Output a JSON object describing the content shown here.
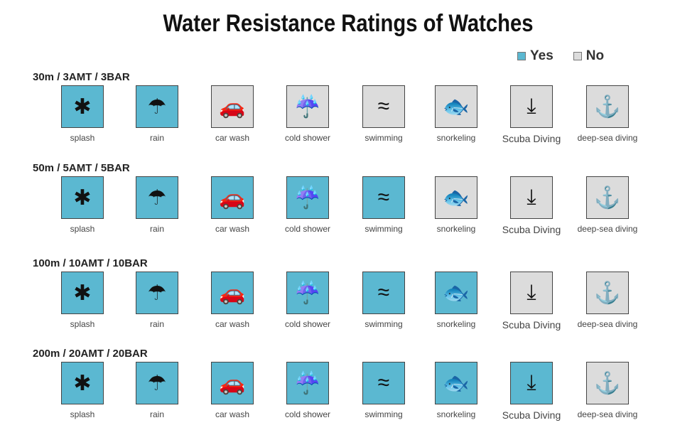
{
  "title": "Water Resistance Ratings of Watches",
  "legend": {
    "yes": "Yes",
    "no": "No",
    "yes_color": "#5bb8d1",
    "no_color": "#dcdcdc"
  },
  "activities": [
    {
      "label": "splash",
      "icon": "splash-icon",
      "glyph": "✱"
    },
    {
      "label": "rain",
      "icon": "umbrella-icon",
      "glyph": "☂"
    },
    {
      "label": "car wash",
      "icon": "car-wash-icon",
      "glyph": "🚗"
    },
    {
      "label": "cold shower",
      "icon": "shower-icon",
      "glyph": "☔"
    },
    {
      "label": "swimming",
      "icon": "swimming-icon",
      "glyph": "≈"
    },
    {
      "label": "snorkeling",
      "icon": "snorkel-icon",
      "glyph": "🐟"
    },
    {
      "label": "Scuba Diving",
      "icon": "scuba-icon",
      "glyph": "⤓"
    },
    {
      "label": "deep-sea diving",
      "icon": "deep-sea-diver-icon",
      "glyph": "⚓"
    }
  ],
  "ratings": [
    {
      "label": "30m / 3AMT / 3BAR",
      "suitable": [
        true,
        true,
        false,
        false,
        false,
        false,
        false,
        false
      ]
    },
    {
      "label": "50m / 5AMT / 5BAR",
      "suitable": [
        true,
        true,
        true,
        true,
        true,
        false,
        false,
        false
      ]
    },
    {
      "label": "100m / 10AMT / 10BAR",
      "suitable": [
        true,
        true,
        true,
        true,
        true,
        true,
        false,
        false
      ]
    },
    {
      "label": "200m / 20AMT / 20BAR",
      "suitable": [
        true,
        true,
        true,
        true,
        true,
        true,
        true,
        false
      ]
    }
  ]
}
